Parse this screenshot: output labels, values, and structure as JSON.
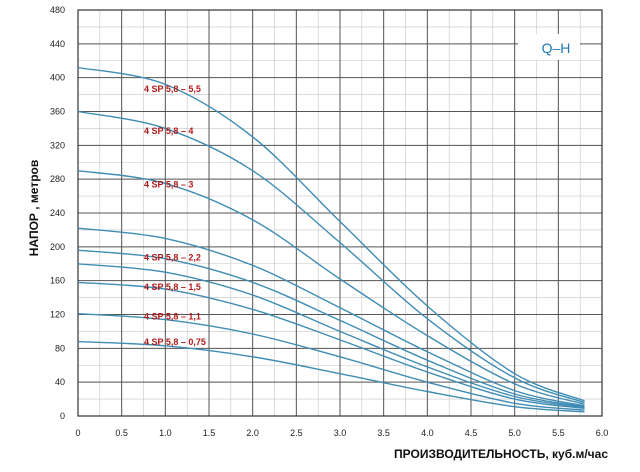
{
  "chart_data": {
    "type": "line",
    "title": "",
    "xlabel": "ПРОИЗВОДИТЕЛЬНОСТЬ, куб.м/час",
    "ylabel": "НАПОР , метров",
    "annotation": "Q–H",
    "xlim": [
      0,
      6.0
    ],
    "ylim": [
      0,
      480
    ],
    "xticks": [
      "0",
      "0.5",
      "1.0",
      "1.5",
      "2.0",
      "2.5",
      "3.0",
      "3.5",
      "4.0",
      "4.5",
      "5.0",
      "5.5",
      "6.0"
    ],
    "yticks": [
      "0",
      "40",
      "80",
      "120",
      "160",
      "200",
      "240",
      "280",
      "320",
      "360",
      "400",
      "440",
      "480"
    ],
    "grid": true,
    "line_color": "#3f8cb4",
    "label_color": "#b11a1a",
    "series": [
      {
        "name": "4 SP 5,8 – 5,5",
        "x": [
          0,
          1.0,
          2.0,
          3.0,
          4.0,
          5.0,
          5.8
        ],
        "y": [
          412,
          392,
          330,
          230,
          130,
          50,
          18
        ]
      },
      {
        "name": "4 SP 5,8 – 4",
        "x": [
          0,
          1.0,
          2.0,
          3.0,
          4.0,
          5.0,
          5.8
        ],
        "y": [
          360,
          340,
          290,
          205,
          115,
          45,
          16
        ]
      },
      {
        "name": "4 SP 5,8 – 3",
        "x": [
          0,
          1.0,
          2.0,
          3.0,
          4.0,
          5.0,
          5.8
        ],
        "y": [
          290,
          275,
          232,
          162,
          95,
          38,
          14
        ]
      },
      {
        "name": "",
        "x": [
          0,
          1.0,
          2.0,
          3.0,
          4.0,
          5.0,
          5.8
        ],
        "y": [
          222,
          210,
          178,
          128,
          76,
          30,
          12
        ]
      },
      {
        "name": "4 SP 5,8 – 2,2",
        "x": [
          0,
          1.0,
          2.0,
          3.0,
          4.0,
          5.0,
          5.8
        ],
        "y": [
          196,
          186,
          158,
          113,
          66,
          26,
          11
        ]
      },
      {
        "name": "",
        "x": [
          0,
          1.0,
          2.0,
          3.0,
          4.0,
          5.0,
          5.8
        ],
        "y": [
          180,
          170,
          143,
          100,
          58,
          23,
          10
        ]
      },
      {
        "name": "4 SP 5,8 – 1,5",
        "x": [
          0,
          1.0,
          2.0,
          3.0,
          4.0,
          5.0,
          5.8
        ],
        "y": [
          158,
          150,
          126,
          90,
          52,
          20,
          9
        ]
      },
      {
        "name": "4 SP 5,8 – 1,1",
        "x": [
          0,
          1.0,
          2.0,
          3.0,
          4.0,
          5.0,
          5.8
        ],
        "y": [
          121,
          114,
          97,
          70,
          40,
          15,
          7
        ]
      },
      {
        "name": "4 SP 5,8 – 0,75",
        "x": [
          0,
          1.0,
          2.0,
          3.0,
          4.0,
          5.0,
          5.8
        ],
        "y": [
          88,
          83,
          70,
          50,
          29,
          11,
          5
        ]
      }
    ]
  }
}
